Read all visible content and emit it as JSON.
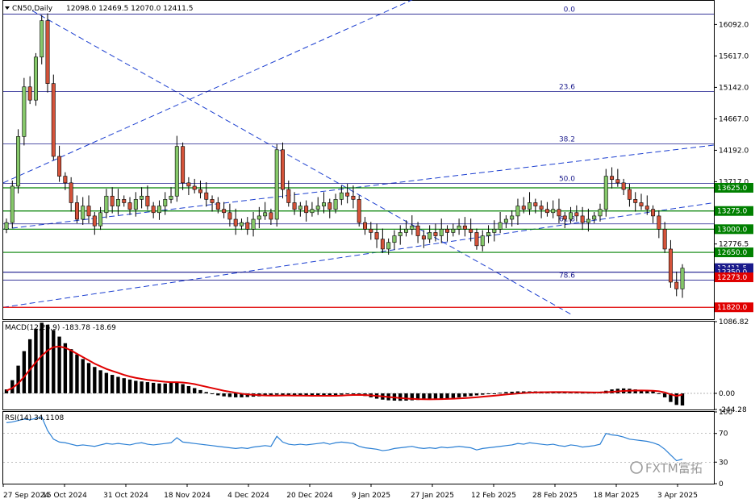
{
  "header": {
    "symbol_timeframe": "CN50,Daily",
    "ohlc": "12098.0 12469.5 12070.0 12411.5"
  },
  "watermark": "FXTM富拓",
  "colors": {
    "bull": "#86c86a",
    "bear": "#d4533a",
    "support_green": "#008000",
    "support_red": "#e00000",
    "fib_line": "#1a1a8c",
    "trend_line": "#1c3fd0",
    "macd_signal": "#e00000",
    "rsi_line": "#2a7fd4"
  },
  "chart_data": [
    {
      "type": "candlestick",
      "name": "price",
      "y_ticks": [
        "16092.0",
        "15617.0",
        "15142.0",
        "14667.0",
        "14192.0",
        "13717.0",
        "12776.5"
      ],
      "ylim": [
        11640,
        16450
      ],
      "x_date_labels": [
        "27 Sep 2024",
        "15 Oct 2024",
        "31 Oct 2024",
        "18 Nov 2024",
        "4 Dec 2024",
        "20 Dec 2024",
        "9 Jan 2025",
        "27 Jan 2025",
        "12 Feb 2025",
        "28 Feb 2025",
        "18 Mar 2025",
        "3 Apr 2025"
      ],
      "fibonacci": [
        {
          "label": "0.0",
          "value": 16250
        },
        {
          "label": "23.6",
          "value": 15080
        },
        {
          "label": "38.2",
          "value": 14290
        },
        {
          "label": "50.0",
          "value": 13690
        },
        {
          "label": "61.8",
          "value": 13080
        },
        {
          "label": "78.6",
          "value": 12230
        }
      ],
      "horizontal_levels": [
        {
          "label": "13625.0",
          "value": 13625,
          "color": "#008000"
        },
        {
          "label": "13275.0",
          "value": 13275,
          "color": "#008000"
        },
        {
          "label": "13000.0",
          "value": 13000,
          "color": "#008000"
        },
        {
          "label": "12650.0",
          "value": 12650,
          "color": "#008000"
        },
        {
          "label": "12350.0",
          "value": 12350,
          "color": "#1a1a8c"
        },
        {
          "label": "11820.0",
          "value": 11820,
          "color": "#e00000"
        }
      ],
      "level_tags": [
        {
          "label": "13625.0",
          "value": 13625,
          "color": "#008000"
        },
        {
          "label": "13275.0",
          "value": 13275,
          "color": "#008000"
        },
        {
          "label": "13000.0",
          "value": 13000,
          "color": "#008000"
        },
        {
          "label": "12650.0",
          "value": 12650,
          "color": "#008000"
        },
        {
          "label": "12411.5",
          "value": 12411.5,
          "color": "#1a1a8c"
        },
        {
          "label": "12350.0",
          "value": 12350,
          "color": "#1a1a8c"
        },
        {
          "label": "12273.0",
          "value": 12273,
          "color": "#e00000"
        },
        {
          "label": "11820.0",
          "value": 11820,
          "color": "#e00000"
        }
      ],
      "closes": [
        13100,
        13650,
        14400,
        15150,
        14950,
        15600,
        16150,
        15200,
        14100,
        13800,
        13700,
        13400,
        13150,
        13350,
        13200,
        13050,
        13250,
        13500,
        13350,
        13450,
        13400,
        13300,
        13450,
        13500,
        13350,
        13250,
        13350,
        13450,
        13500,
        14250,
        13700,
        13650,
        13600,
        13550,
        13450,
        13400,
        13300,
        13250,
        13150,
        13050,
        13100,
        13000,
        13150,
        13200,
        13250,
        13150,
        14200,
        13600,
        13400,
        13300,
        13350,
        13250,
        13300,
        13350,
        13400,
        13300,
        13450,
        13550,
        13500,
        13450,
        13100,
        13000,
        12950,
        12850,
        12700,
        12800,
        12900,
        12950,
        13000,
        13050,
        12900,
        12850,
        12950,
        12900,
        13000,
        12950,
        13000,
        13050,
        13000,
        12950,
        12750,
        12900,
        12950,
        13000,
        13100,
        13150,
        13200,
        13350,
        13300,
        13400,
        13350,
        13300,
        13250,
        13300,
        13200,
        13150,
        13250,
        13200,
        13100,
        13150,
        13200,
        13300,
        13800,
        13750,
        13700,
        13600,
        13450,
        13400,
        13350,
        13300,
        13200,
        13000,
        12700,
        12200,
        12098,
        12411.5
      ],
      "opens": [
        13000,
        13100,
        13650,
        14400,
        15150,
        14950,
        15600,
        16150,
        15200,
        14100,
        13800,
        13700,
        13400,
        13150,
        13350,
        13200,
        13050,
        13250,
        13500,
        13350,
        13450,
        13400,
        13300,
        13450,
        13500,
        13350,
        13250,
        13350,
        13450,
        13500,
        14250,
        13700,
        13650,
        13600,
        13550,
        13450,
        13400,
        13300,
        13250,
        13150,
        13050,
        13100,
        13000,
        13150,
        13200,
        13250,
        13150,
        14200,
        13600,
        13400,
        13300,
        13350,
        13250,
        13300,
        13350,
        13400,
        13300,
        13450,
        13550,
        13500,
        13450,
        13100,
        13000,
        12950,
        12850,
        12700,
        12800,
        12900,
        12950,
        13000,
        13050,
        12900,
        12850,
        12950,
        12900,
        13000,
        12950,
        13000,
        13050,
        13000,
        12950,
        12750,
        12900,
        12950,
        13000,
        13100,
        13150,
        13200,
        13350,
        13300,
        13400,
        13350,
        13300,
        13250,
        13300,
        13200,
        13150,
        13250,
        13200,
        13100,
        13150,
        13200,
        13300,
        13800,
        13750,
        13700,
        13600,
        13450,
        13400,
        13350,
        13300,
        13200,
        13000,
        12700,
        12200,
        12098
      ]
    },
    {
      "type": "bar",
      "name": "MACD(12,26,9)",
      "title": "MACD(12,26,9) -183.78 -18.69",
      "y_ticks": [
        "1086.82",
        "0.00",
        "-244.28"
      ],
      "ylim": [
        -244.28,
        1086.82
      ],
      "values": [
        60,
        200,
        420,
        640,
        820,
        980,
        1070,
        1040,
        960,
        860,
        760,
        670,
        590,
        520,
        460,
        400,
        350,
        310,
        280,
        250,
        230,
        210,
        190,
        180,
        170,
        160,
        150,
        150,
        160,
        170,
        140,
        110,
        80,
        50,
        20,
        -10,
        -30,
        -45,
        -55,
        -60,
        -60,
        -55,
        -50,
        -45,
        -40,
        -35,
        -20,
        -25,
        -30,
        -35,
        -38,
        -40,
        -42,
        -43,
        -40,
        -36,
        -30,
        -20,
        -10,
        -5,
        -20,
        -40,
        -60,
        -80,
        -95,
        -105,
        -110,
        -112,
        -110,
        -105,
        -100,
        -95,
        -90,
        -85,
        -80,
        -75,
        -70,
        -60,
        -50,
        -40,
        -30,
        -20,
        -10,
        0,
        10,
        20,
        25,
        30,
        30,
        30,
        30,
        28,
        25,
        22,
        20,
        18,
        15,
        12,
        10,
        10,
        10,
        20,
        40,
        60,
        70,
        75,
        70,
        60,
        50,
        40,
        30,
        0,
        -60,
        -130,
        -175,
        -183.78
      ],
      "signal": [
        40,
        80,
        150,
        250,
        360,
        470,
        570,
        650,
        700,
        710,
        690,
        650,
        600,
        550,
        500,
        450,
        410,
        370,
        340,
        310,
        280,
        255,
        235,
        220,
        205,
        195,
        185,
        175,
        170,
        170,
        165,
        155,
        140,
        120,
        100,
        80,
        60,
        40,
        25,
        10,
        -5,
        -15,
        -22,
        -28,
        -32,
        -34,
        -33,
        -32,
        -32,
        -33,
        -34,
        -35,
        -36,
        -37,
        -37,
        -37,
        -36,
        -33,
        -28,
        -24,
        -23,
        -26,
        -31,
        -38,
        -46,
        -55,
        -63,
        -71,
        -78,
        -83,
        -87,
        -89,
        -90,
        -89,
        -87,
        -84,
        -81,
        -77,
        -72,
        -66,
        -59,
        -51,
        -43,
        -35,
        -26,
        -17,
        -9,
        -2,
        5,
        10,
        14,
        17,
        19,
        20,
        20,
        20,
        19,
        18,
        16,
        15,
        14,
        15,
        18,
        23,
        30,
        36,
        40,
        43,
        44,
        43,
        40,
        32,
        14,
        -15,
        -40,
        -18.69
      ]
    },
    {
      "type": "line",
      "name": "RSI(14)",
      "title": "RSI(14) 34.1108",
      "y_ticks": [
        "100",
        "70",
        "30",
        "0"
      ],
      "ylim": [
        0,
        100
      ],
      "values": [
        85,
        86,
        88,
        90,
        89,
        91,
        93,
        74,
        62,
        58,
        57,
        55,
        53,
        54,
        53,
        52,
        54,
        56,
        55,
        56,
        55,
        54,
        56,
        57,
        55,
        54,
        55,
        56,
        57,
        64,
        58,
        57,
        56,
        55,
        54,
        53,
        52,
        51,
        50,
        49,
        50,
        49,
        51,
        52,
        53,
        52,
        66,
        58,
        55,
        54,
        55,
        54,
        55,
        56,
        57,
        55,
        57,
        58,
        57,
        56,
        52,
        50,
        49,
        48,
        46,
        47,
        49,
        50,
        51,
        52,
        50,
        49,
        50,
        49,
        51,
        50,
        51,
        52,
        51,
        50,
        47,
        49,
        50,
        51,
        52,
        53,
        54,
        56,
        55,
        57,
        56,
        55,
        54,
        55,
        53,
        52,
        54,
        53,
        51,
        52,
        53,
        55,
        70,
        68,
        67,
        65,
        62,
        61,
        60,
        59,
        57,
        54,
        48,
        40,
        32,
        34.11
      ]
    }
  ]
}
